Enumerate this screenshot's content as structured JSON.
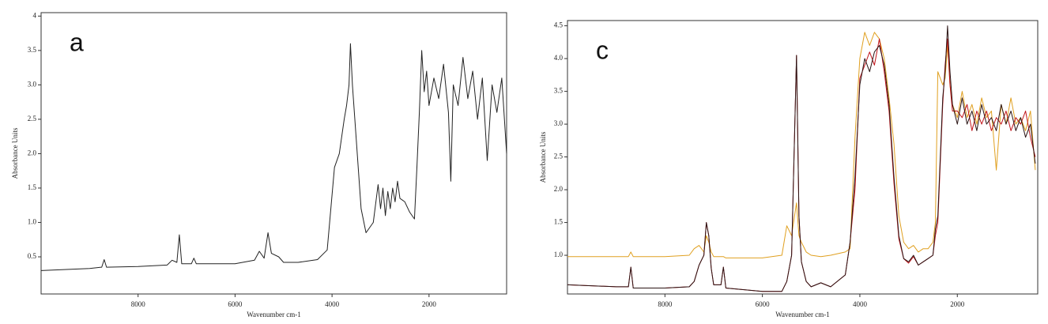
{
  "chart_data": [
    {
      "type": "line",
      "annotation": "a",
      "y_label": "Absorbance Units",
      "x_label": "Wavenumber cm-1",
      "xlim": [
        10000,
        400
      ],
      "ylim": [
        -0.04,
        4.05
      ],
      "xticks": [
        8000,
        6000,
        4000,
        2000
      ],
      "yticks": [
        0.5,
        {
          "value": 1,
          "label": "1.0"
        },
        1.5,
        {
          "value": 2,
          "label": "2.0"
        },
        2.5,
        {
          "value": 3,
          "label": "3.0"
        },
        3.5,
        4
      ],
      "x": [
        10000,
        9000,
        8750,
        8700,
        8650,
        8000,
        7400,
        7300,
        7200,
        7150,
        7100,
        6900,
        6850,
        6800,
        6000,
        5600,
        5500,
        5400,
        5320,
        5250,
        5100,
        5000,
        4700,
        4300,
        4100,
        3950,
        3850,
        3750,
        3700,
        3650,
        3620,
        3580,
        3500,
        3400,
        3300,
        3150,
        3050,
        3000,
        2950,
        2900,
        2850,
        2800,
        2750,
        2700,
        2650,
        2600,
        2500,
        2400,
        2300,
        2250,
        2200,
        2150,
        2100,
        2050,
        2000,
        1900,
        1800,
        1700,
        1600,
        1550,
        1500,
        1400,
        1300,
        1200,
        1100,
        1000,
        900,
        800,
        700,
        600,
        500,
        400
      ],
      "series": [
        {
          "color": "#222222",
          "values": [
            0.3,
            0.33,
            0.35,
            0.46,
            0.35,
            0.36,
            0.38,
            0.45,
            0.42,
            0.82,
            0.4,
            0.4,
            0.48,
            0.4,
            0.4,
            0.45,
            0.58,
            0.48,
            0.85,
            0.55,
            0.5,
            0.42,
            0.42,
            0.46,
            0.6,
            1.8,
            2.0,
            2.5,
            2.7,
            3.0,
            3.6,
            3.0,
            2.2,
            1.2,
            0.85,
            1.0,
            1.55,
            1.2,
            1.5,
            1.1,
            1.45,
            1.2,
            1.5,
            1.3,
            1.6,
            1.35,
            1.3,
            1.15,
            1.05,
            1.8,
            2.6,
            3.5,
            2.9,
            3.2,
            2.7,
            3.1,
            2.8,
            3.3,
            2.6,
            1.6,
            3.0,
            2.7,
            3.4,
            2.8,
            3.2,
            2.5,
            3.1,
            1.9,
            3.0,
            2.6,
            3.1,
            2.0
          ]
        }
      ]
    },
    {
      "type": "line",
      "annotation": "c",
      "y_label": "Absorbance Units",
      "x_label": "Wavenumber cm-1",
      "xlim": [
        10000,
        350
      ],
      "ylim": [
        0.41,
        4.58
      ],
      "xticks": [
        8000,
        6000,
        4000,
        2000
      ],
      "yticks": [
        {
          "value": 1,
          "label": "1.0"
        },
        1.5,
        {
          "value": 2,
          "label": "2.0"
        },
        2.5,
        {
          "value": 3,
          "label": "3.0"
        },
        3.5,
        {
          "value": 4,
          "label": "4.0"
        },
        4.5
      ],
      "x": [
        10000,
        9000,
        8750,
        8700,
        8650,
        8000,
        7500,
        7400,
        7300,
        7200,
        7150,
        7100,
        7050,
        7000,
        6850,
        6800,
        6750,
        6000,
        5600,
        5500,
        5400,
        5300,
        5250,
        5200,
        5100,
        5000,
        4800,
        4600,
        4300,
        4200,
        4100,
        4000,
        3900,
        3800,
        3700,
        3600,
        3500,
        3400,
        3300,
        3200,
        3100,
        3000,
        2900,
        2800,
        2700,
        2600,
        2500,
        2450,
        2400,
        2300,
        2250,
        2200,
        2150,
        2100,
        2000,
        1900,
        1800,
        1700,
        1600,
        1500,
        1400,
        1300,
        1200,
        1100,
        1000,
        900,
        800,
        700,
        600,
        500,
        400
      ],
      "series": [
        {
          "color": "#e0a020",
          "values": [
            0.98,
            0.98,
            0.98,
            1.05,
            0.98,
            0.98,
            1.0,
            1.1,
            1.15,
            1.05,
            1.3,
            1.2,
            1.05,
            0.98,
            0.98,
            0.98,
            0.96,
            0.96,
            1.0,
            1.45,
            1.3,
            1.8,
            1.3,
            1.2,
            1.05,
            1.0,
            0.98,
            1.0,
            1.05,
            1.1,
            2.8,
            4.0,
            4.4,
            4.2,
            4.4,
            4.3,
            4.0,
            3.4,
            2.7,
            1.6,
            1.2,
            1.1,
            1.15,
            1.05,
            1.1,
            1.1,
            1.2,
            1.5,
            3.8,
            3.6,
            3.7,
            4.2,
            3.6,
            3.3,
            3.1,
            3.5,
            3.1,
            3.3,
            3.0,
            3.4,
            3.1,
            3.2,
            2.3,
            3.3,
            3.0,
            3.4,
            3.0,
            3.1,
            2.9,
            3.2,
            2.3
          ]
        },
        {
          "color": "#c0141a",
          "values": [
            0.55,
            0.52,
            0.52,
            0.82,
            0.5,
            0.5,
            0.52,
            0.6,
            0.85,
            1.0,
            1.5,
            1.3,
            0.8,
            0.55,
            0.55,
            0.82,
            0.5,
            0.45,
            0.45,
            0.6,
            1.0,
            4.05,
            1.6,
            0.9,
            0.6,
            0.52,
            0.58,
            0.52,
            0.7,
            1.2,
            2.0,
            3.7,
            3.9,
            4.1,
            3.9,
            4.3,
            3.8,
            3.2,
            2.1,
            1.25,
            0.95,
            0.88,
            0.98,
            0.85,
            0.9,
            0.95,
            1.0,
            1.3,
            1.5,
            3.3,
            3.9,
            4.3,
            3.6,
            3.2,
            3.2,
            3.1,
            3.3,
            2.9,
            3.2,
            3.0,
            3.2,
            2.9,
            3.1,
            3.0,
            3.2,
            2.9,
            3.1,
            3.0,
            3.2,
            2.8,
            2.5
          ]
        },
        {
          "color": "#2a1414",
          "values": [
            0.55,
            0.52,
            0.52,
            0.82,
            0.5,
            0.5,
            0.52,
            0.6,
            0.85,
            1.0,
            1.5,
            1.3,
            0.8,
            0.55,
            0.55,
            0.82,
            0.5,
            0.45,
            0.45,
            0.6,
            1.0,
            4.05,
            1.6,
            0.9,
            0.6,
            0.52,
            0.58,
            0.52,
            0.7,
            1.2,
            2.2,
            3.6,
            4.0,
            3.8,
            4.1,
            4.2,
            3.9,
            3.3,
            2.2,
            1.3,
            0.95,
            0.9,
            1.0,
            0.85,
            0.9,
            0.95,
            1.0,
            1.4,
            1.6,
            3.4,
            3.8,
            4.5,
            3.8,
            3.3,
            3.0,
            3.4,
            3.0,
            3.2,
            2.9,
            3.3,
            3.0,
            3.1,
            2.9,
            3.3,
            3.0,
            3.2,
            2.9,
            3.1,
            2.8,
            3.0,
            2.4
          ]
        }
      ]
    }
  ]
}
